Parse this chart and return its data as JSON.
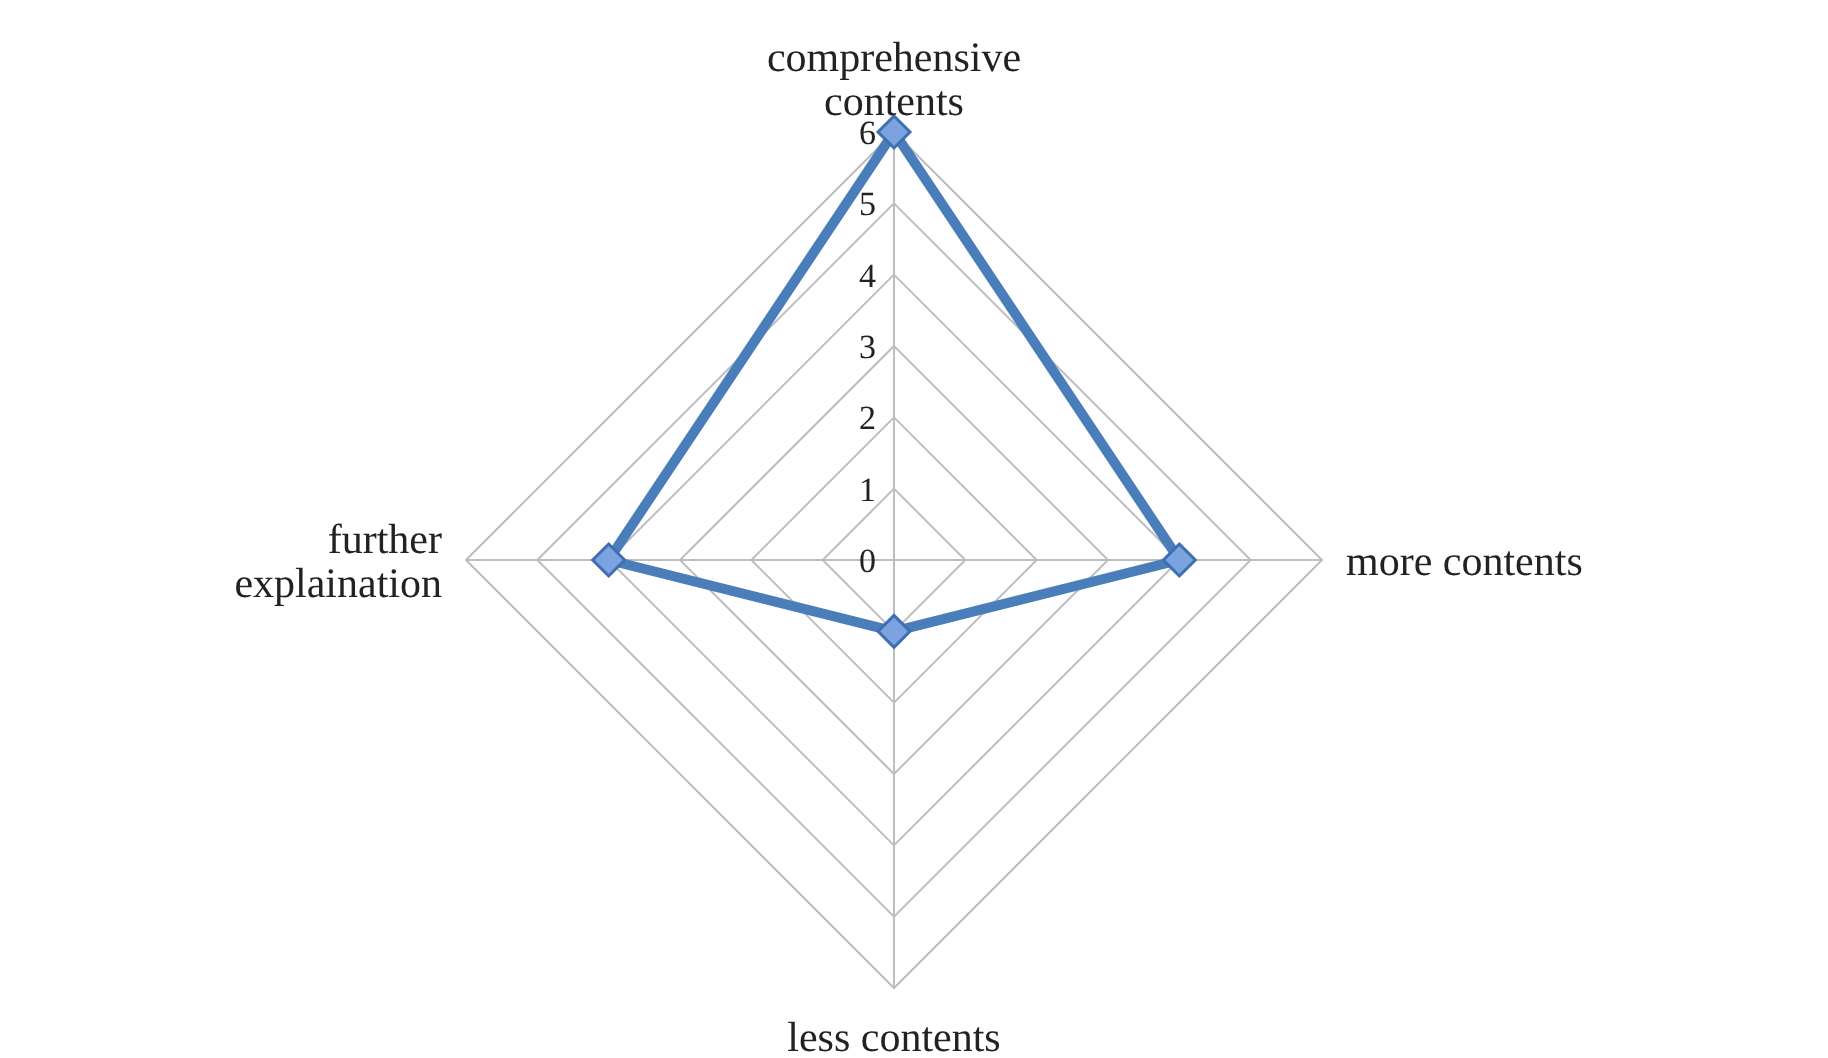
{
  "chart_data": {
    "type": "radar",
    "categories": [
      "comprehensive contents",
      "more contents",
      "less contents",
      "further explaination"
    ],
    "series": [
      {
        "color": "#4a7ebb",
        "values": [
          6,
          4,
          1,
          4
        ]
      }
    ],
    "ylim": [
      0,
      6
    ],
    "yticks": [
      0,
      1,
      2,
      3,
      4,
      5,
      6
    ],
    "grid": true,
    "marker": "diamond"
  }
}
